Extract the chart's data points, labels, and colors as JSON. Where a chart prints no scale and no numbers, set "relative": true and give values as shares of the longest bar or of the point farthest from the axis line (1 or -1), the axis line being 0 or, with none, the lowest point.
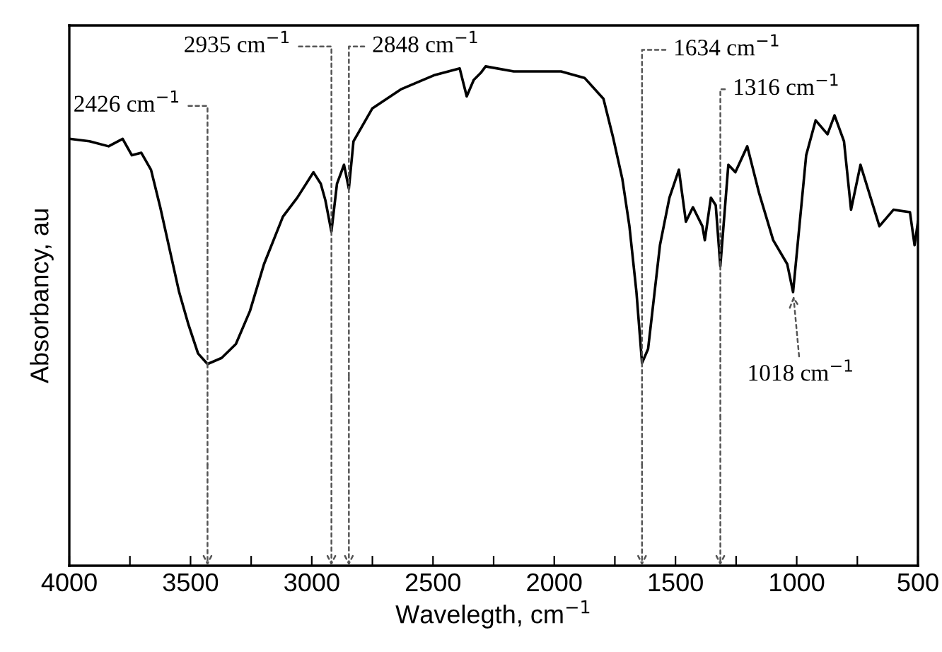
{
  "chart_data": {
    "type": "line",
    "relative": true,
    "xlabel": "Wavelegth, cm$^{−1}$",
    "ylabel": "Absorbancy, au",
    "xlim": [
      4000,
      500
    ],
    "xticks": [
      4000,
      {
        "value": 3750,
        "label": null
      },
      3500,
      {
        "value": 3250,
        "label": null
      },
      3000,
      {
        "value": 2750,
        "label": null
      },
      2500,
      {
        "value": 2250,
        "label": null
      },
      2000,
      {
        "value": 1750,
        "label": null
      },
      1500,
      {
        "value": 1250,
        "label": null
      },
      1000,
      {
        "value": 750,
        "label": null
      },
      500
    ],
    "grid": false,
    "marker": "none",
    "line_style": "solid",
    "series": [
      {
        "color": "#000000",
        "x": [
          4000,
          3917,
          3838,
          3780,
          3742,
          3703,
          3663,
          3625,
          3586,
          3547,
          3508,
          3469,
          3430,
          3372,
          3313,
          3255,
          3197,
          3119,
          3060,
          2993,
          2963,
          2944,
          2919,
          2896,
          2867,
          2847,
          2828,
          2750,
          2633,
          2497,
          2390,
          2361,
          2332,
          2303,
          2283,
          2167,
          1972,
          1875,
          1797,
          1758,
          1719,
          1690,
          1661,
          1638,
          1613,
          1564,
          1525,
          1486,
          1457,
          1428,
          1389,
          1379,
          1354,
          1334,
          1315,
          1282,
          1253,
          1204,
          1155,
          1097,
          1039,
          1015,
          961,
          922,
          873,
          844,
          805,
          776,
          737,
          659,
          601,
          533,
          514,
          500
        ],
        "values": [
          0.855,
          0.85,
          0.84,
          0.855,
          0.822,
          0.827,
          0.793,
          0.718,
          0.633,
          0.548,
          0.482,
          0.425,
          0.404,
          0.416,
          0.444,
          0.51,
          0.604,
          0.699,
          0.737,
          0.788,
          0.765,
          0.732,
          0.669,
          0.765,
          0.803,
          0.755,
          0.85,
          0.916,
          0.954,
          0.982,
          0.996,
          0.94,
          0.973,
          0.987,
          1.0,
          0.99,
          0.99,
          0.977,
          0.935,
          0.859,
          0.774,
          0.68,
          0.548,
          0.406,
          0.434,
          0.642,
          0.737,
          0.793,
          0.689,
          0.718,
          0.68,
          0.652,
          0.737,
          0.722,
          0.6,
          0.803,
          0.788,
          0.84,
          0.746,
          0.652,
          0.604,
          0.548,
          0.822,
          0.892,
          0.864,
          0.902,
          0.85,
          0.713,
          0.803,
          0.68,
          0.713,
          0.708,
          0.642,
          0.689
        ]
      }
    ],
    "annotations": [
      {
        "text": "2426 cm$^{−1}$",
        "x": 3430,
        "y": 0.404
      },
      {
        "text": "2935 cm$^{−1}$",
        "x": 2919,
        "y": 0.669
      },
      {
        "text": "2848 cm$^{−1}$",
        "x": 2847,
        "y": 0.755
      },
      {
        "text": "1634 cm$^{−1}$",
        "x": 1638,
        "y": 0.406
      },
      {
        "text": "1316 cm$^{−1}$",
        "x": 1315,
        "y": 0.6
      },
      {
        "text": "1018 cm$^{−1}$",
        "x": 1015,
        "y": 0.548
      }
    ]
  }
}
